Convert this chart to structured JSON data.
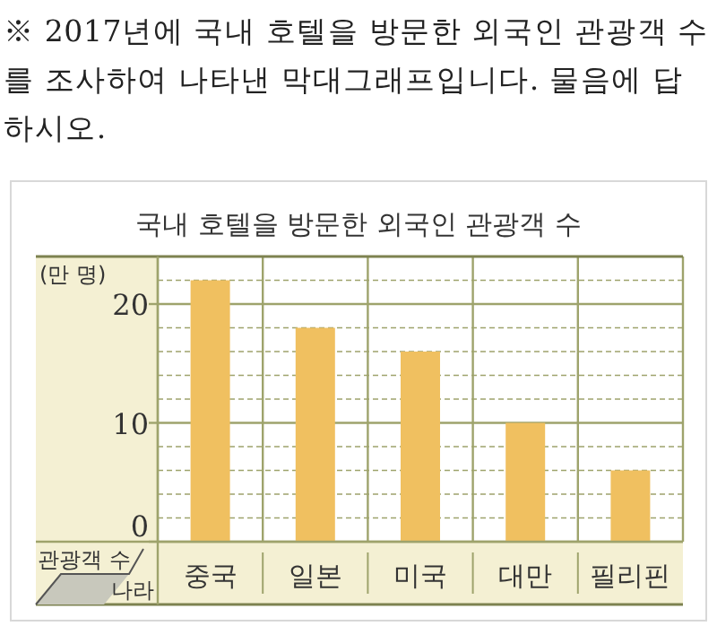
{
  "chart_data": {
    "type": "bar",
    "title": "국내 호텔을 방문한 외국인 관광객 수",
    "annotations": [
      "※ 2017년에 국내 호텔을 방문한 외국인 관광객 수를 조사하여 나타낸 막대그래프입니다. 물음에 답하시오.",
      "(만 명)"
    ],
    "ylabel": "관광객 수",
    "xlabel": "나라",
    "categories": [
      "중국",
      "일본",
      "미국",
      "대만",
      "필리핀"
    ],
    "values": [
      22,
      18,
      16,
      10,
      6
    ],
    "color": "#f0c060",
    "ylim": [
      0,
      24
    ],
    "yticks": [
      0,
      {
        "value": 2,
        "label": null
      },
      {
        "value": 4,
        "label": null
      },
      {
        "value": 6,
        "label": null
      },
      {
        "value": 8,
        "label": null
      },
      10,
      {
        "value": 12,
        "label": null
      },
      {
        "value": 14,
        "label": null
      },
      {
        "value": 16,
        "label": null
      },
      {
        "value": 18,
        "label": null
      },
      20,
      {
        "value": 22,
        "label": null
      }
    ],
    "grid": "y"
  }
}
